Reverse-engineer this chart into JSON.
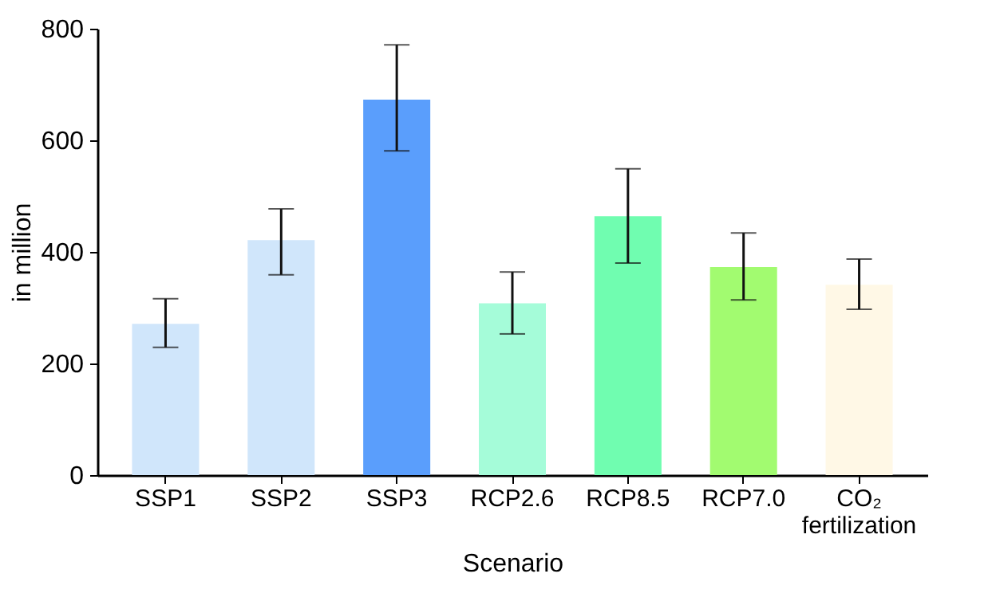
{
  "chart_data": {
    "type": "bar",
    "xlabel": "Scenario",
    "ylabel": "in million",
    "categories": [
      "SSP1",
      "SSP2",
      "SSP3",
      "RCP2.6",
      "RCP8.5",
      "RCP7.0",
      "CO₂ fertilization"
    ],
    "values": [
      271,
      421,
      673,
      308,
      464,
      373,
      341
    ],
    "colors": [
      "#d0e6fb",
      "#d0e6fb",
      "#5a9efc",
      "#a5fcd9",
      "#70fdb0",
      "#a2fb70",
      "#fff8e6"
    ],
    "errors": [
      [
        229,
        316
      ],
      [
        359,
        477
      ],
      [
        581,
        771
      ],
      [
        253,
        364
      ],
      [
        380,
        549
      ],
      [
        314,
        434
      ],
      [
        297,
        387
      ]
    ],
    "ylim": [
      0,
      800
    ],
    "yticks": [
      0,
      200,
      400,
      600,
      800
    ],
    "grid": false
  }
}
